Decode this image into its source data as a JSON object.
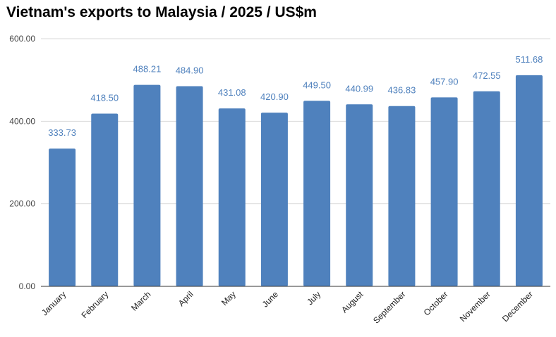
{
  "chart_data": {
    "type": "bar",
    "title": "Vietnam's exports to Malaysia / 2025 / US$m",
    "xlabel": "",
    "ylabel": "",
    "categories": [
      "January",
      "February",
      "March",
      "April",
      "May",
      "June",
      "July",
      "August",
      "September",
      "October",
      "November",
      "December"
    ],
    "values": [
      333.73,
      418.5,
      488.21,
      484.9,
      431.08,
      420.9,
      449.5,
      440.99,
      436.83,
      457.9,
      472.55,
      511.68
    ],
    "data_labels": [
      "333.73",
      "418.50",
      "488.21",
      "484.90",
      "431.08",
      "420.90",
      "449.50",
      "440.99",
      "436.83",
      "457.90",
      "472.55",
      "511.68"
    ],
    "ylim": [
      0,
      600
    ],
    "yticks": [
      0,
      200,
      400,
      600
    ],
    "ytick_labels": [
      "0.00",
      "200.00",
      "400.00",
      "600.00"
    ],
    "grid": true,
    "legend": "none",
    "colors": {
      "bar": "#4f81bd",
      "data_label": "#4f81bd",
      "grid": "#d9d9d9",
      "axis": "#333333"
    }
  }
}
